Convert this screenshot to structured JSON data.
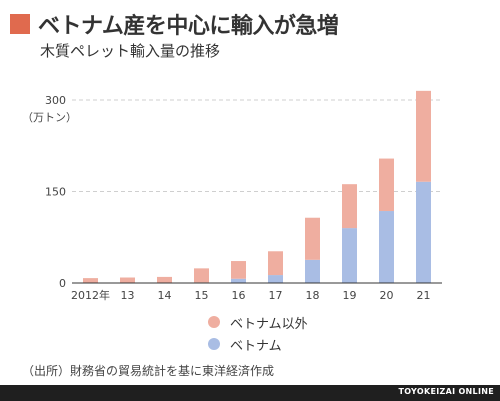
{
  "header": {
    "title": "ベトナム産を中心に輸入が急増",
    "accent_color": "#e06a4e"
  },
  "chart_data": {
    "type": "bar",
    "stacked": true,
    "title": "木質ペレット輸入量の推移",
    "ylabel": "（万トン）",
    "xlabel": "",
    "categories": [
      "2012年",
      "13",
      "14",
      "15",
      "16",
      "17",
      "18",
      "19",
      "20",
      "21"
    ],
    "series": [
      {
        "name": "ベトナム",
        "color": "#a9bde4",
        "values": [
          0.5,
          0.5,
          0.5,
          1,
          7,
          13,
          38,
          90,
          118,
          166
        ]
      },
      {
        "name": "ベトナム以外",
        "color": "#efaea0",
        "values": [
          7.5,
          8.5,
          9.5,
          23,
          29,
          39,
          69,
          72,
          86,
          149
        ]
      }
    ],
    "yticks": [
      0,
      150,
      300
    ],
    "ylim": [
      0,
      310
    ],
    "grid": true,
    "legend_position": "bottom-center"
  },
  "source": "（出所）財務省の貿易統計を基に東洋経済作成",
  "footer": {
    "brand": "TOYOKEIZAI ONLINE"
  }
}
